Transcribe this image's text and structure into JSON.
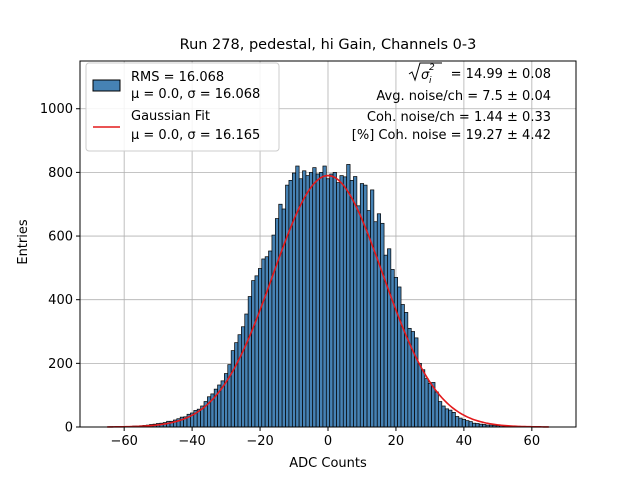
{
  "chart_data": {
    "type": "bar",
    "title": "Run 278, pedestal, hi Gain, Channels 0-3",
    "xlabel": "ADC Counts",
    "ylabel": "Entries",
    "xlim": [
      -73,
      73
    ],
    "ylim": [
      0,
      1150
    ],
    "xticks": [
      -60,
      -40,
      -20,
      0,
      20,
      40,
      60
    ],
    "xtick_labels": [
      "−60",
      "−40",
      "−20",
      "0",
      "20",
      "40",
      "60"
    ],
    "yticks": [
      0,
      200,
      400,
      600,
      800,
      1000
    ],
    "ytick_labels": [
      "0",
      "200",
      "400",
      "600",
      "800",
      "1000"
    ],
    "grid": true,
    "legend_position": "upper left",
    "histogram": {
      "name_lines": [
        "RMS = 16.068",
        "μ = 0.0, σ = 16.068"
      ],
      "color": "#4682b4",
      "edge_color": "#000000",
      "bin_centers": [
        -64,
        -63,
        -62,
        -61,
        -60,
        -59,
        -58,
        -57,
        -56,
        -55,
        -54,
        -53,
        -52,
        -51,
        -50,
        -49,
        -48,
        -47,
        -46,
        -45,
        -44,
        -43,
        -42,
        -41,
        -40,
        -39,
        -38,
        -37,
        -36,
        -35,
        -34,
        -33,
        -32,
        -31,
        -30,
        -29,
        -28,
        -27,
        -26,
        -25,
        -24,
        -23,
        -22,
        -21,
        -20,
        -19,
        -18,
        -17,
        -16,
        -15,
        -14,
        -13,
        -12,
        -11,
        -10,
        -9,
        -8,
        -7,
        -6,
        -5,
        -4,
        -3,
        -2,
        -1,
        0,
        1,
        2,
        3,
        4,
        5,
        6,
        7,
        8,
        9,
        10,
        11,
        12,
        13,
        14,
        15,
        16,
        17,
        18,
        19,
        20,
        21,
        22,
        23,
        24,
        25,
        26,
        27,
        28,
        29,
        30,
        31,
        32,
        33,
        34,
        35,
        36,
        37,
        38,
        39,
        40,
        41,
        42,
        43,
        44,
        45,
        46,
        47,
        48,
        49,
        50,
        51,
        52,
        53,
        54,
        55,
        56,
        57,
        58,
        59,
        60,
        61,
        62,
        63,
        64
      ],
      "counts": [
        1,
        1,
        1,
        1,
        2,
        2,
        2,
        3,
        3,
        4,
        5,
        6,
        8,
        9,
        11,
        12,
        14,
        18,
        18,
        22,
        26,
        31,
        32,
        40,
        44,
        52,
        56,
        66,
        80,
        95,
        104,
        119,
        132,
        145,
        168,
        196,
        240,
        265,
        290,
        315,
        355,
        410,
        460,
        475,
        498,
        528,
        535,
        553,
        603,
        655,
        700,
        685,
        760,
        775,
        798,
        820,
        780,
        805,
        790,
        800,
        815,
        795,
        800,
        820,
        780,
        795,
        800,
        768,
        790,
        786,
        825,
        775,
        787,
        695,
        765,
        760,
        680,
        745,
        645,
        670,
        640,
        540,
        560,
        495,
        470,
        440,
        385,
        360,
        310,
        300,
        280,
        200,
        180,
        152,
        137,
        140,
        110,
        80,
        66,
        57,
        53,
        46,
        33,
        28,
        24,
        20,
        17,
        12,
        11,
        9,
        8,
        6,
        6,
        5,
        4,
        4,
        3,
        2,
        2,
        1,
        2,
        1,
        1,
        1,
        1,
        0,
        0,
        0,
        0
      ]
    },
    "fit": {
      "name_lines": [
        "Gaussian Fit",
        "μ = 0.0, σ = 16.165"
      ],
      "type": "line",
      "color": "#e31a1c",
      "mu": 0.0,
      "sigma": 16.165,
      "amplitude": 790,
      "x_range": [
        -65,
        65
      ]
    },
    "stats_box": {
      "line1_suffix": " = 14.99 ± 0.08",
      "line2": "Avg. noise/ch = 7.5 ± 0.04",
      "line3": "Coh. noise/ch = 1.44 ± 0.33",
      "line4": "[%] Coh. noise = 19.27 ± 4.42"
    }
  }
}
